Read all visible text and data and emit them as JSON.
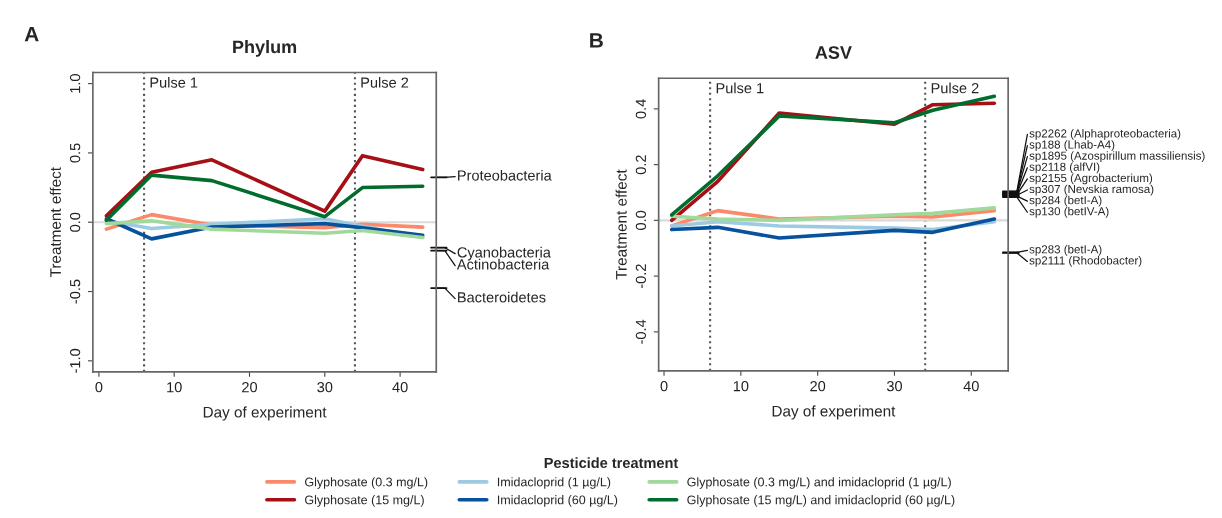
{
  "chart_data": [
    {
      "type": "line",
      "title": "Phylum",
      "xlabel": "Day of experiment",
      "ylabel": "Treatment effect",
      "legend_title": "Pesticide treatment",
      "legend": "bottom",
      "x": [
        1,
        7,
        15,
        30,
        35,
        43
      ],
      "xlim": [
        -0.8,
        44.8
      ],
      "xticks": [
        0,
        10,
        20,
        30,
        40
      ],
      "ylim": [
        -1.08,
        1.08
      ],
      "yticks": [
        {
          "value": -1,
          "label": "-1.0"
        },
        {
          "value": -0.5,
          "label": "-0.5"
        },
        {
          "value": 0,
          "label": "0.0"
        },
        {
          "value": 0.5,
          "label": "0.5"
        },
        {
          "value": 1,
          "label": "1.0"
        }
      ],
      "grid": false,
      "marker": "none",
      "line_style": "solid",
      "series": [
        {
          "name": "Glyphosate (0.3 mg/L)",
          "color": "#fb8a6a",
          "values": [
            -0.05,
            0.055,
            -0.02,
            -0.04,
            -0.015,
            -0.035
          ]
        },
        {
          "name": "Glyphosate (15 mg/L)",
          "color": "#a50f15",
          "values": [
            0.046,
            0.36,
            0.45,
            0.08,
            0.48,
            0.38
          ]
        },
        {
          "name": "Imidacloprid (1 µg/L)",
          "color": "#9ecae1",
          "values": [
            0.01,
            -0.045,
            -0.015,
            0.025,
            -0.03,
            -0.11
          ]
        },
        {
          "name": "Imidacloprid (60 µg/L)",
          "color": "#08519c",
          "values": [
            0.025,
            -0.12,
            -0.035,
            -0.01,
            -0.04,
            -0.095
          ]
        },
        {
          "name": "Glyphosate (0.3 mg/L) and imidacloprid (1 µg/L)",
          "color": "#a1d99b",
          "values": [
            -0.01,
            0.01,
            -0.05,
            -0.08,
            -0.06,
            -0.11
          ]
        },
        {
          "name": "Glyphosate (15 mg/L) and imidacloprid (60 µg/L)",
          "color": "#006d2c",
          "values": [
            0.015,
            0.34,
            0.3,
            0.04,
            0.25,
            0.26
          ]
        }
      ],
      "ref_lines": [
        {
          "axis": "x",
          "value": 6,
          "label": "Pulse 1",
          "color": "#555555",
          "line_style": "dotted"
        },
        {
          "axis": "x",
          "value": 34,
          "label": "Pulse 2",
          "color": "#555555",
          "line_style": "dotted"
        },
        {
          "axis": "y",
          "value": 0,
          "label": null,
          "color": "#d9d9d9",
          "line_style": "solid"
        }
      ],
      "annotations": [
        "A",
        "Proteobacteria",
        "Cyanobacteria",
        "Actinobacteria",
        "Bacteroidetes"
      ]
    },
    {
      "type": "line",
      "title": "ASV",
      "xlabel": "Day of experiment",
      "ylabel": "Treatment effect",
      "x": [
        1,
        7,
        15,
        30,
        35,
        43
      ],
      "xlim": [
        -0.7,
        44.8
      ],
      "xticks": [
        0,
        10,
        20,
        30,
        40
      ],
      "ylim": [
        -0.54,
        0.51
      ],
      "yticks": [
        {
          "value": -0.4,
          "label": "-0.4"
        },
        {
          "value": -0.2,
          "label": "-0.2"
        },
        {
          "value": 0,
          "label": "0.0"
        },
        {
          "value": 0.2,
          "label": "0.2"
        },
        {
          "value": 0.4,
          "label": "0.4"
        }
      ],
      "grid": false,
      "marker": "none",
      "line_style": "solid",
      "series": [
        {
          "name": "Glyphosate (0.3 mg/L)",
          "color": "#fb8a6a",
          "values": [
            -0.02,
            0.035,
            0.005,
            0.015,
            0.012,
            0.035
          ]
        },
        {
          "name": "Glyphosate (15 mg/L)",
          "color": "#a50f15",
          "values": [
            0.0,
            0.14,
            0.385,
            0.345,
            0.415,
            0.42
          ]
        },
        {
          "name": "Imidacloprid (1 µg/L)",
          "color": "#9ecae1",
          "values": [
            -0.02,
            -0.005,
            -0.02,
            -0.028,
            -0.033,
            -0.005
          ]
        },
        {
          "name": "Imidacloprid (60 µg/L)",
          "color": "#08519c",
          "values": [
            -0.033,
            -0.025,
            -0.063,
            -0.036,
            -0.043,
            0.005
          ]
        },
        {
          "name": "Glyphosate (0.3 mg/L) and imidacloprid (1 µg/L)",
          "color": "#a1d99b",
          "values": [
            0.015,
            0.005,
            0.0,
            0.02,
            0.025,
            0.045
          ]
        },
        {
          "name": "Glyphosate (15 mg/L) and imidacloprid (60 µg/L)",
          "color": "#006d2c",
          "values": [
            0.02,
            0.16,
            0.375,
            0.35,
            0.395,
            0.445
          ]
        }
      ],
      "ref_lines": [
        {
          "axis": "x",
          "value": 6,
          "label": "Pulse 1",
          "color": "#555555",
          "line_style": "dotted"
        },
        {
          "axis": "x",
          "value": 34,
          "label": "Pulse 2",
          "color": "#555555",
          "line_style": "dotted"
        },
        {
          "axis": "y",
          "value": 0,
          "label": null,
          "color": "#d9d9d9",
          "line_style": "solid"
        }
      ],
      "annotations": [
        "B",
        "sp2262 (Alphaproteobacteria)",
        "sp188 (Lhab-A4)",
        "sp1895 (Azospirillum massiliensis)",
        "sp2118 (alfVI)",
        "sp2155 (Agrobacterium)",
        "sp307 (Nevskia ramosa)",
        "sp284 (betI-A)",
        "sp130 (betIV-A)",
        "sp283 (betI-A)",
        "sp2111 (Rhodobacter)"
      ]
    }
  ]
}
